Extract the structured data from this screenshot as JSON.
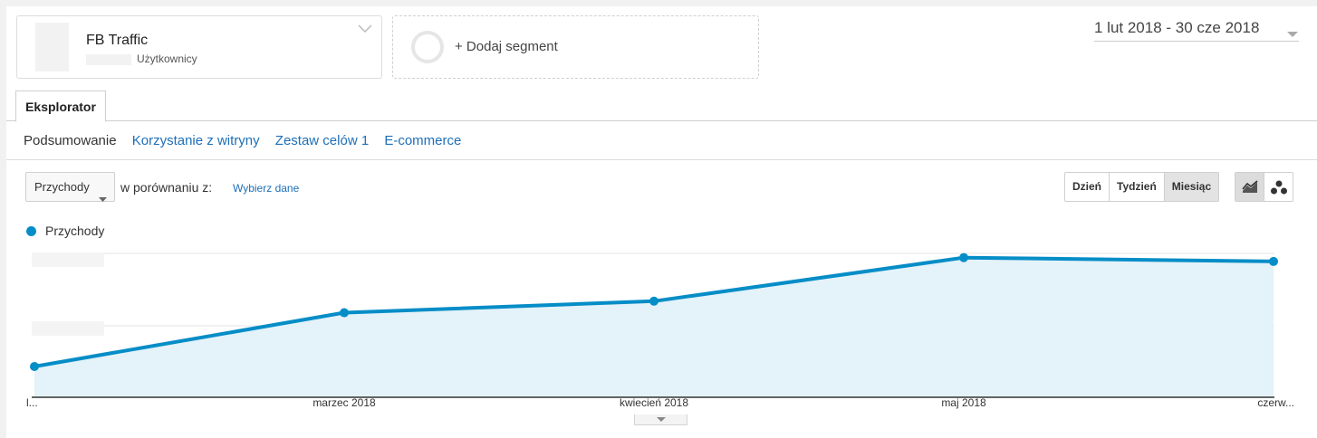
{
  "segments": {
    "active": {
      "name": "FB Traffic",
      "sub": "Użytkownicy"
    },
    "add_label": "+ Dodaj segment"
  },
  "date_range": "1 lut 2018 - 30 cze 2018",
  "tabs": [
    {
      "label": "Eksplorator",
      "active": true
    }
  ],
  "subtabs": [
    {
      "label": "Podsumowanie",
      "current": true
    },
    {
      "label": "Korzystanie z witryny",
      "current": false
    },
    {
      "label": "Zestaw celów 1",
      "current": false
    },
    {
      "label": "E-commerce",
      "current": false
    }
  ],
  "controls": {
    "metric_select": "Przychody",
    "compare_label": "w porównaniu z:",
    "compare_link": "Wybierz dane",
    "periods": [
      {
        "label": "Dzień",
        "active": false
      },
      {
        "label": "Tydzień",
        "active": false
      },
      {
        "label": "Miesiąc",
        "active": true
      }
    ],
    "view_icons": [
      "line-chart-icon",
      "bubble-chart-icon"
    ]
  },
  "colors": {
    "series": "#058dc7",
    "fill": "#e4f2f9",
    "link": "#1e6fb8"
  },
  "chart_data": {
    "type": "area",
    "x": [
      "l...",
      "marzec 2018",
      "kwiecień 2018",
      "maj 2018",
      "czerw..."
    ],
    "series": [
      {
        "name": "Przychody",
        "values": [
          0.24,
          0.66,
          0.75,
          1.09,
          1.06
        ]
      }
    ],
    "ylim": [
      0,
      1.25
    ],
    "legend_position": "top-left",
    "grid": true
  }
}
